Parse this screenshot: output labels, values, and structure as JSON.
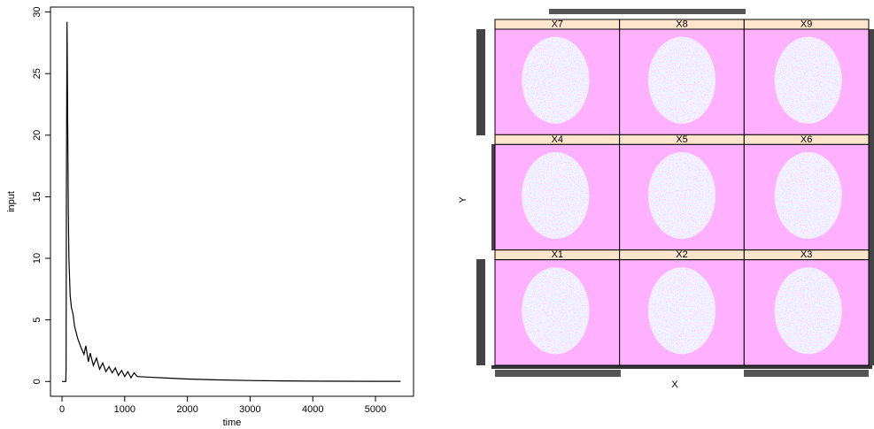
{
  "chart_data": [
    {
      "type": "line",
      "xlabel": "time",
      "ylabel": "input",
      "color": "#000000",
      "x": [
        0,
        20,
        40,
        55,
        60,
        65,
        70,
        80,
        90,
        100,
        110,
        130,
        150,
        175,
        200,
        250,
        300,
        350,
        380,
        420,
        450,
        500,
        550,
        600,
        650,
        700,
        750,
        800,
        850,
        900,
        950,
        1000,
        1050,
        1100,
        1150,
        1200,
        1400,
        1700,
        2000,
        2500,
        3000,
        3500,
        4000,
        4500,
        5000,
        5400
      ],
      "values": [
        0,
        0,
        0,
        0,
        0,
        1,
        15,
        29.2,
        22,
        14,
        10,
        7,
        6,
        5.5,
        4.5,
        3.5,
        2.8,
        2.2,
        2.9,
        1.6,
        2.3,
        1.3,
        1.9,
        1.0,
        1.5,
        0.8,
        1.2,
        0.7,
        1.1,
        0.5,
        0.9,
        0.4,
        0.8,
        0.3,
        0.7,
        0.4,
        0.35,
        0.27,
        0.2,
        0.13,
        0.08,
        0.05,
        0.03,
        0.02,
        0.01,
        0.01
      ],
      "xlim": [
        -184,
        5607
      ],
      "ylim": [
        -1.2,
        30.4
      ],
      "xticks": [
        0,
        1000,
        2000,
        3000,
        4000,
        5000
      ],
      "yticks": [
        0,
        5,
        10,
        15,
        20,
        25,
        30
      ]
    },
    {
      "type": "image-grid",
      "xlabel": "X",
      "ylabel": "Y",
      "columns": 3,
      "panels": [
        "X7",
        "X8",
        "X9",
        "X4",
        "X5",
        "X6",
        "X1",
        "X2",
        "X3"
      ]
    }
  ]
}
